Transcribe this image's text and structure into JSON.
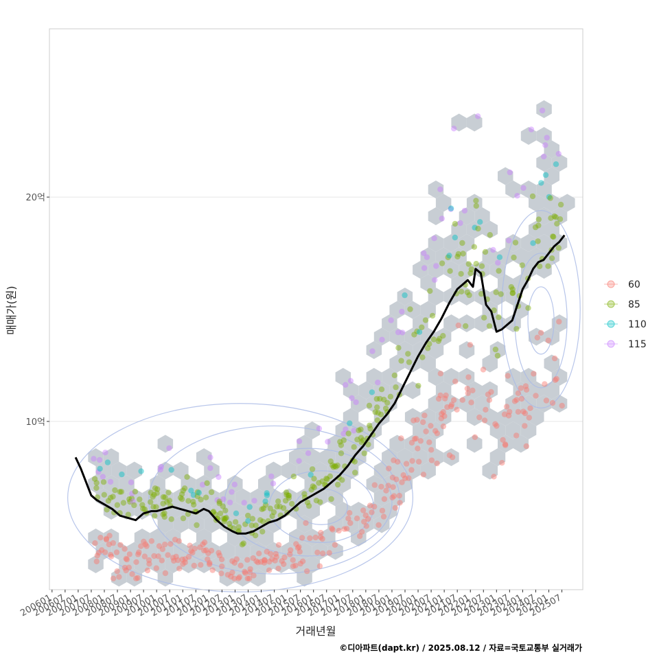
{
  "chart_data": {
    "type": "scatter",
    "title": "",
    "xlabel": "거래년월",
    "ylabel": "매매가(원)",
    "caption": "©디아파트(dapt.kr) / 2025.08.12 / 자료=국토교통부 실거래가",
    "x_ticks": [
      "200601",
      "200607",
      "200701",
      "200707",
      "200801",
      "200807",
      "200901",
      "200907",
      "201001",
      "201007",
      "201101",
      "201107",
      "201201",
      "201207",
      "201301",
      "201307",
      "201401",
      "201407",
      "201501",
      "201507",
      "201601",
      "201607",
      "201701",
      "201707",
      "201801",
      "201807",
      "201901",
      "201907",
      "202001",
      "202007",
      "202101",
      "202107",
      "202201",
      "202207",
      "202301",
      "202307",
      "202401",
      "202407",
      "202501",
      "202507"
    ],
    "y_ticks": [
      {
        "value": 10,
        "label": "10억"
      },
      {
        "value": 20,
        "label": "20억"
      }
    ],
    "ylim": [
      2.5,
      27.5
    ],
    "xlim": [
      2005.9,
      2026.3
    ],
    "grid": true,
    "legend_position": "right",
    "series": [
      {
        "name": "60",
        "color": "#F8766D"
      },
      {
        "name": "85",
        "color": "#7CAE00"
      },
      {
        "name": "110",
        "color": "#00BFC4"
      },
      {
        "name": "115",
        "color": "#C77CFF"
      }
    ],
    "trend_line": {
      "name": "moving-average",
      "x": [
        2006.9,
        2007.1,
        2007.3,
        2007.5,
        2007.7,
        2008.0,
        2008.3,
        2008.6,
        2008.9,
        2009.2,
        2009.5,
        2009.8,
        2010.0,
        2010.3,
        2010.6,
        2010.9,
        2011.2,
        2011.5,
        2011.8,
        2012.0,
        2012.3,
        2012.6,
        2012.9,
        2013.1,
        2013.4,
        2013.7,
        2014.0,
        2014.3,
        2014.6,
        2014.9,
        2015.2,
        2015.5,
        2015.8,
        2016.1,
        2016.4,
        2016.7,
        2017.0,
        2017.3,
        2017.6,
        2017.9,
        2018.2,
        2018.5,
        2018.8,
        2019.1,
        2019.4,
        2019.7,
        2020.0,
        2020.3,
        2020.6,
        2020.9,
        2021.2,
        2021.5,
        2021.7,
        2021.9,
        2022.1,
        2022.2,
        2022.4,
        2022.6,
        2022.8,
        2023.0,
        2023.2,
        2023.4,
        2023.6,
        2023.8,
        2024.0,
        2024.2,
        2024.4,
        2024.6,
        2024.8,
        2025.0,
        2025.2,
        2025.4,
        2025.6
      ],
      "y": [
        8.4,
        7.9,
        7.3,
        6.7,
        6.5,
        6.3,
        6.1,
        5.8,
        5.7,
        5.6,
        5.9,
        6.0,
        6.0,
        6.1,
        6.2,
        6.1,
        6.0,
        5.9,
        6.1,
        6.0,
        5.6,
        5.3,
        5.1,
        5.0,
        5.0,
        5.1,
        5.3,
        5.5,
        5.6,
        5.8,
        6.1,
        6.4,
        6.6,
        6.8,
        7.0,
        7.3,
        7.6,
        8.0,
        8.5,
        8.9,
        9.4,
        9.9,
        10.3,
        10.8,
        11.5,
        12.2,
        12.9,
        13.5,
        14.0,
        14.6,
        15.3,
        15.9,
        16.1,
        16.3,
        16.0,
        16.8,
        16.6,
        15.2,
        14.9,
        14.0,
        14.1,
        14.3,
        14.5,
        15.2,
        15.9,
        16.3,
        16.8,
        17.1,
        17.2,
        17.5,
        17.8,
        18.0,
        18.3
      ]
    }
  }
}
